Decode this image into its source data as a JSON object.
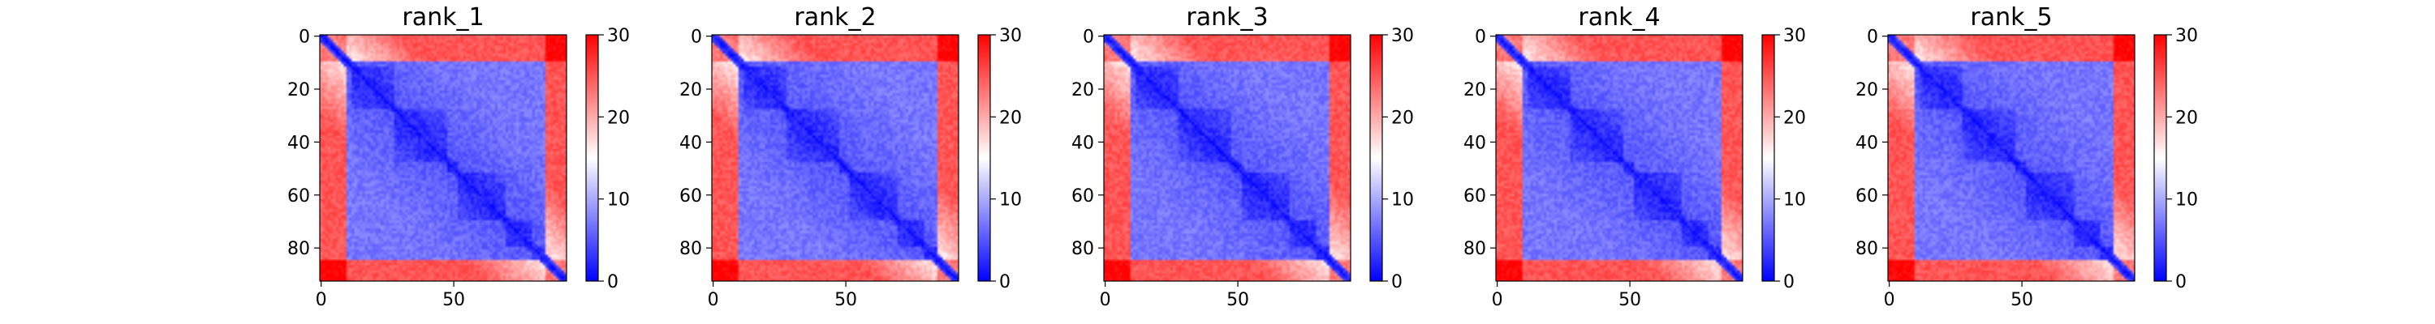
{
  "chart_data": [
    {
      "type": "heatmap",
      "title": "rank_1",
      "shape": [
        93,
        93
      ],
      "x_ticks": [
        0,
        50
      ],
      "y_ticks": [
        0,
        20,
        40,
        60,
        80
      ],
      "colorbar": {
        "vmin": 0,
        "vmax": 30,
        "ticks": [
          0,
          10,
          20,
          30
        ],
        "colormap": "bwr"
      },
      "domain_boundaries": [
        12,
        28,
        48,
        52,
        70,
        80
      ],
      "unstructured_regions": [
        [
          0,
          10
        ],
        [
          85,
          93
        ]
      ],
      "value_range": [
        0,
        30
      ]
    },
    {
      "type": "heatmap",
      "title": "rank_2",
      "shape": [
        93,
        93
      ],
      "x_ticks": [
        0,
        50
      ],
      "y_ticks": [
        0,
        20,
        40,
        60,
        80
      ],
      "colorbar": {
        "vmin": 0,
        "vmax": 30,
        "ticks": [
          0,
          10,
          20,
          30
        ],
        "colormap": "bwr"
      },
      "domain_boundaries": [
        12,
        28,
        48,
        52,
        70,
        80
      ],
      "unstructured_regions": [
        [
          0,
          10
        ],
        [
          85,
          93
        ]
      ],
      "value_range": [
        0,
        30
      ]
    },
    {
      "type": "heatmap",
      "title": "rank_3",
      "shape": [
        93,
        93
      ],
      "x_ticks": [
        0,
        50
      ],
      "y_ticks": [
        0,
        20,
        40,
        60,
        80
      ],
      "colorbar": {
        "vmin": 0,
        "vmax": 30,
        "ticks": [
          0,
          10,
          20,
          30
        ],
        "colormap": "bwr"
      },
      "domain_boundaries": [
        12,
        28,
        48,
        52,
        70,
        80
      ],
      "unstructured_regions": [
        [
          0,
          10
        ],
        [
          85,
          93
        ]
      ],
      "value_range": [
        0,
        30
      ]
    },
    {
      "type": "heatmap",
      "title": "rank_4",
      "shape": [
        93,
        93
      ],
      "x_ticks": [
        0,
        50
      ],
      "y_ticks": [
        0,
        20,
        40,
        60,
        80
      ],
      "colorbar": {
        "vmin": 0,
        "vmax": 30,
        "ticks": [
          0,
          10,
          20,
          30
        ],
        "colormap": "bwr"
      },
      "domain_boundaries": [
        12,
        28,
        48,
        52,
        70,
        80
      ],
      "unstructured_regions": [
        [
          0,
          10
        ],
        [
          85,
          93
        ]
      ],
      "value_range": [
        0,
        30
      ]
    },
    {
      "type": "heatmap",
      "title": "rank_5",
      "shape": [
        93,
        93
      ],
      "x_ticks": [
        0,
        50
      ],
      "y_ticks": [
        0,
        20,
        40,
        60,
        80
      ],
      "colorbar": {
        "vmin": 0,
        "vmax": 30,
        "ticks": [
          0,
          10,
          20,
          30
        ],
        "colormap": "bwr"
      },
      "domain_boundaries": [
        12,
        28,
        48,
        52,
        70,
        80
      ],
      "unstructured_regions": [
        [
          0,
          10
        ],
        [
          85,
          93
        ]
      ],
      "value_range": [
        0,
        30
      ]
    }
  ]
}
